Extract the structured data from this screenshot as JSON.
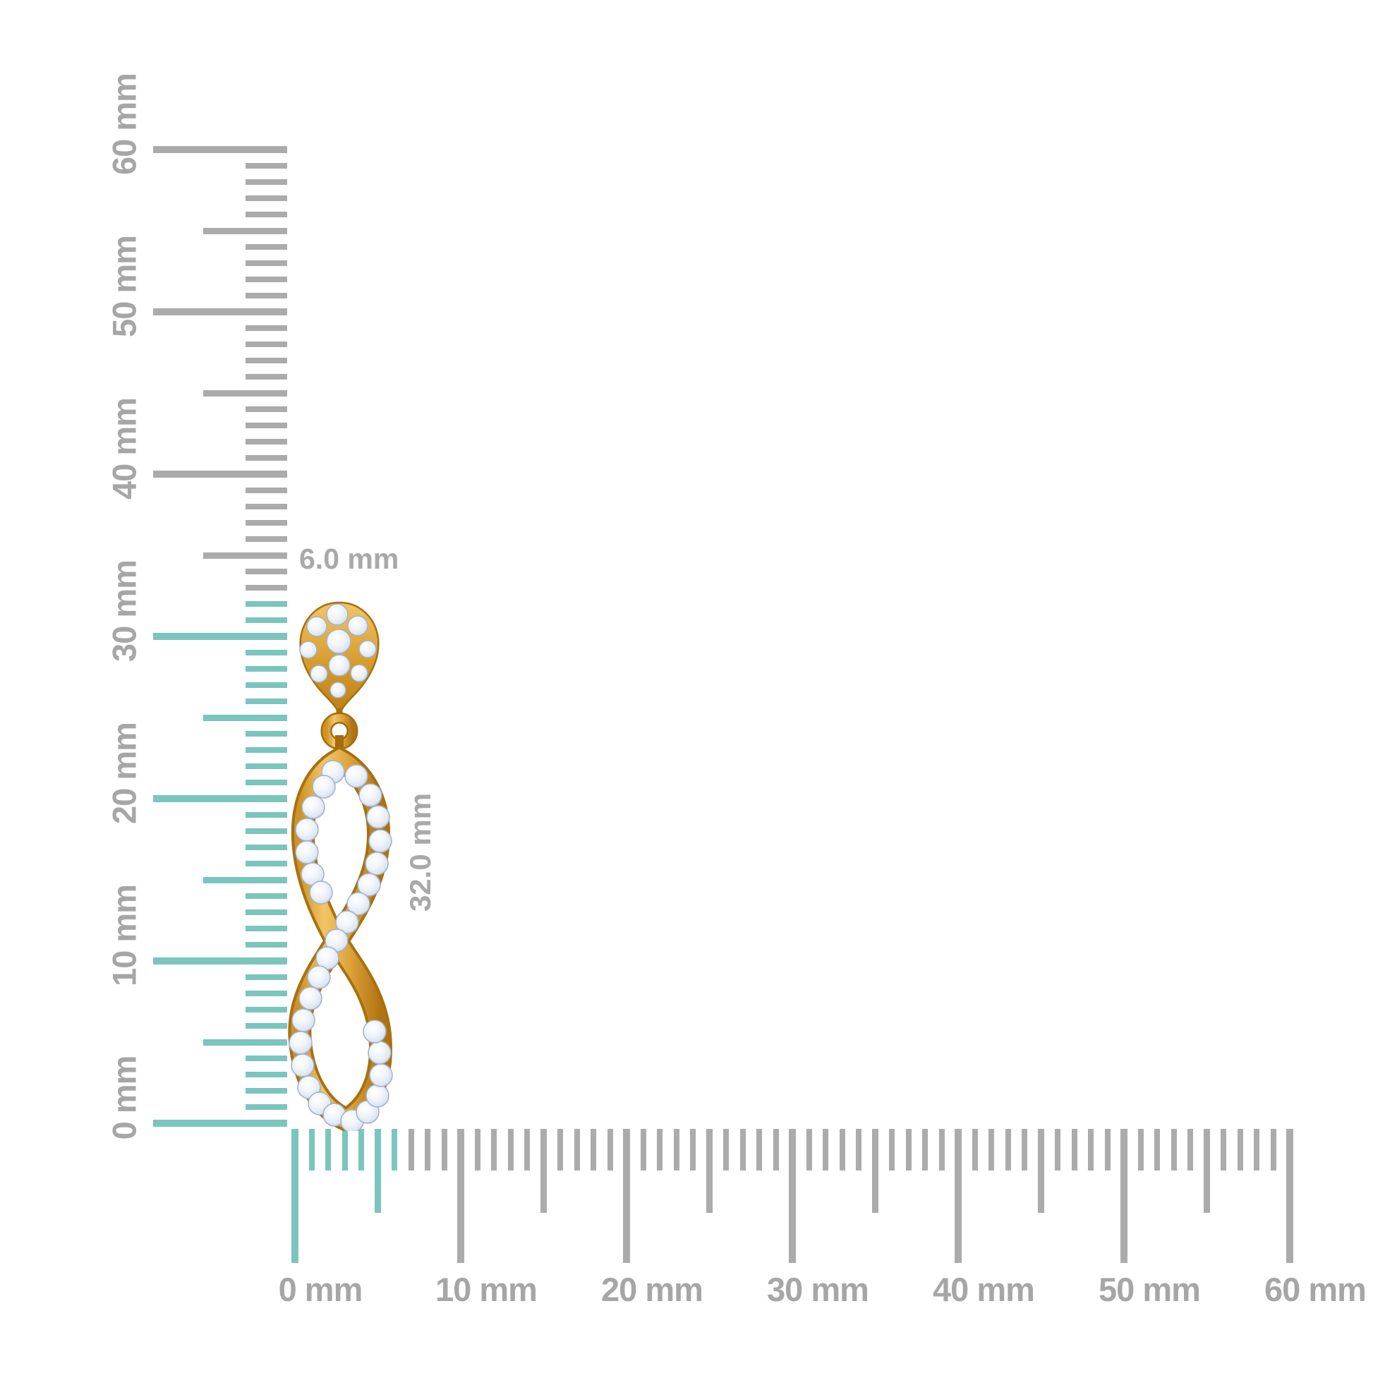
{
  "figure": {
    "type": "jewelry-measurement-diagram",
    "background": "#FFFFFF"
  },
  "annotations": {
    "width_label": "6.0 mm",
    "height_label": "32.0 mm"
  },
  "rulers": {
    "unit_suffix": " mm",
    "vertical": {
      "min_mm": 0,
      "max_mm": 60,
      "major_step_mm": 10,
      "medium_step_mm": 5,
      "labels": [
        "0 mm",
        "10 mm",
        "20 mm",
        "30 mm",
        "40 mm",
        "50 mm",
        "60 mm"
      ],
      "highlight_to_mm": 32
    },
    "horizontal": {
      "min_mm": 0,
      "max_mm": 60,
      "major_step_mm": 10,
      "medium_step_mm": 5,
      "labels": [
        "0 mm",
        "10 mm",
        "20 mm",
        "30 mm",
        "40 mm",
        "50 mm",
        "60 mm"
      ],
      "highlight_to_mm": 6
    },
    "colors": {
      "highlight": "#7AC5BE",
      "tick": "#ABABAB",
      "label": "#A6A6A6"
    }
  },
  "earring": {
    "metal_color": "#DDA032",
    "metal_highlight": "#F2C566",
    "metal_shadow": "#A8700F",
    "diamond_fill": "#EDF2FA",
    "diamond_edge": "#A2B1C7"
  }
}
